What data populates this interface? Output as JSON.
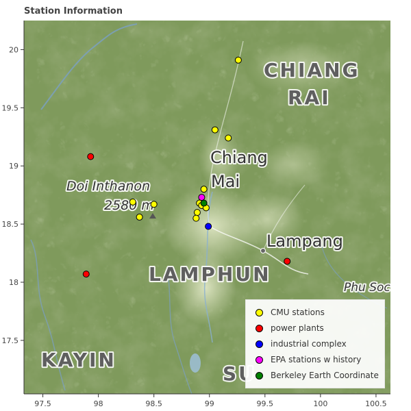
{
  "title": "Station Information",
  "map": {
    "x_ticks": [
      97.5,
      98,
      98.5,
      99,
      99.5,
      100,
      100.5
    ],
    "y_ticks": [
      17.5,
      18,
      18.5,
      19,
      19.5,
      20
    ],
    "x_tick_labels": [
      "97.5",
      "98",
      "98.5",
      "99",
      "99.5",
      "100",
      "100.5"
    ],
    "y_tick_labels": [
      "17.5",
      "18",
      "18.5",
      "19",
      "19.5",
      "20"
    ],
    "xlim": [
      97.33,
      100.63
    ],
    "ylim": [
      17.04,
      20.25
    ],
    "place_labels": [
      {
        "text": "CHIANG",
        "style": "region"
      },
      {
        "text": "RAI",
        "style": "region"
      },
      {
        "text": "Chiang",
        "style": "city"
      },
      {
        "text": "Mai",
        "style": "city"
      },
      {
        "text": "Doi Inthanon",
        "style": "peak"
      },
      {
        "text": "2580 m",
        "style": "peak"
      },
      {
        "text": "Lampang",
        "style": "city"
      },
      {
        "text": "LAMPHUN",
        "style": "region"
      },
      {
        "text": "Phu Soc",
        "style": "peak"
      },
      {
        "text": "KAYIN",
        "style": "region"
      },
      {
        "text": "SU",
        "style": "region"
      }
    ]
  },
  "legend": [
    {
      "label": "CMU stations",
      "color": "#ffff00"
    },
    {
      "label": "power plants",
      "color": "#ff0000"
    },
    {
      "label": "industrial complex",
      "color": "#0000ff"
    },
    {
      "label": "EPA stations w history",
      "color": "#ff00ff"
    },
    {
      "label": "Berkeley Earth Coordinate",
      "color": "#008000"
    }
  ],
  "stations": [
    {
      "group": "CMU stations",
      "color": "#ffff00",
      "lon": 99.26,
      "lat": 19.91
    },
    {
      "group": "CMU stations",
      "color": "#ffff00",
      "lon": 99.05,
      "lat": 19.31
    },
    {
      "group": "CMU stations",
      "color": "#ffff00",
      "lon": 99.17,
      "lat": 19.24
    },
    {
      "group": "CMU stations",
      "color": "#ffff00",
      "lon": 98.95,
      "lat": 18.8
    },
    {
      "group": "CMU stations",
      "color": "#ffff00",
      "lon": 98.31,
      "lat": 18.69
    },
    {
      "group": "CMU stations",
      "color": "#ffff00",
      "lon": 98.5,
      "lat": 18.67
    },
    {
      "group": "CMU stations",
      "color": "#ffff00",
      "lon": 98.37,
      "lat": 18.56
    },
    {
      "group": "CMU stations",
      "color": "#ffff00",
      "lon": 98.91,
      "lat": 18.68
    },
    {
      "group": "CMU stations",
      "color": "#ffff00",
      "lon": 98.93,
      "lat": 18.66
    },
    {
      "group": "CMU stations",
      "color": "#ffff00",
      "lon": 98.97,
      "lat": 18.64
    },
    {
      "group": "CMU stations",
      "color": "#ffff00",
      "lon": 98.89,
      "lat": 18.6
    },
    {
      "group": "CMU stations",
      "color": "#ffff00",
      "lon": 98.88,
      "lat": 18.55
    },
    {
      "group": "power plants",
      "color": "#ff0000",
      "lon": 97.93,
      "lat": 19.08
    },
    {
      "group": "power plants",
      "color": "#ff0000",
      "lon": 97.89,
      "lat": 18.07
    },
    {
      "group": "power plants",
      "color": "#ff0000",
      "lon": 99.7,
      "lat": 18.18
    },
    {
      "group": "industrial complex",
      "color": "#0000ff",
      "lon": 98.99,
      "lat": 18.48
    },
    {
      "group": "EPA stations w history",
      "color": "#ff00ff",
      "lon": 98.93,
      "lat": 18.73
    },
    {
      "group": "Berkeley Earth Coordinate",
      "color": "#008000",
      "lon": 98.95,
      "lat": 18.68
    }
  ]
}
